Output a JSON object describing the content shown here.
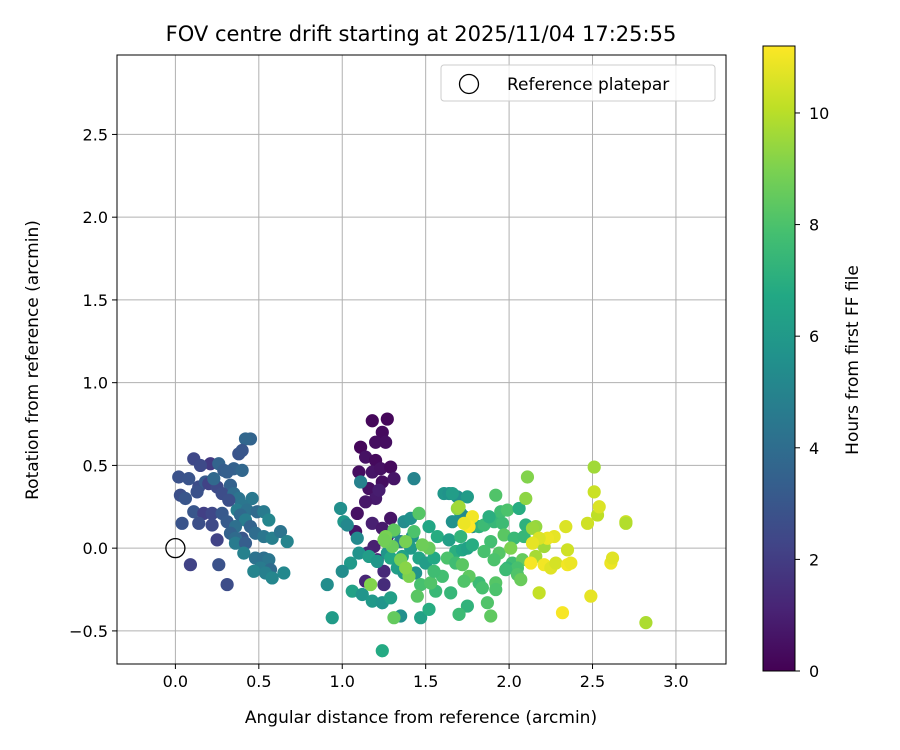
{
  "chart_data": {
    "type": "scatter",
    "title": "FOV centre drift starting at 2025/11/04 17:25:55",
    "xlabel": "Angular distance from reference (arcmin)",
    "ylabel": "Rotation from reference (arcmin)",
    "xlim": [
      -0.35,
      3.3
    ],
    "ylim": [
      -0.7,
      2.98
    ],
    "x_ticks": [
      0.0,
      0.5,
      1.0,
      1.5,
      2.0,
      2.5,
      3.0
    ],
    "y_ticks": [
      -0.5,
      0.0,
      0.5,
      1.0,
      1.5,
      2.0,
      2.5
    ],
    "x_tick_labels": [
      "0.0",
      "0.5",
      "1.0",
      "1.5",
      "2.0",
      "2.5",
      "3.0"
    ],
    "y_tick_labels": [
      "−0.5",
      "0.0",
      "0.5",
      "1.0",
      "1.5",
      "2.0",
      "2.5"
    ],
    "grid": true,
    "legend": {
      "location": "top-right",
      "entries": [
        "Reference platepar"
      ]
    },
    "reference_point": {
      "x": 0.0,
      "y": 0.0,
      "label": "Reference platepar"
    },
    "colorbar": {
      "label": "Hours from first FF file",
      "colormap": "viridis",
      "range": [
        0,
        11.2
      ],
      "ticks": [
        0,
        2,
        4,
        6,
        8,
        10
      ],
      "tick_labels": [
        "0",
        "2",
        "4",
        "6",
        "8",
        "10"
      ]
    },
    "points": [
      [
        1.18,
        0.77,
        0.2
      ],
      [
        1.27,
        0.78,
        0.2
      ],
      [
        1.24,
        0.7,
        0.3
      ],
      [
        1.2,
        0.64,
        0.4
      ],
      [
        1.11,
        0.61,
        0.2
      ],
      [
        1.26,
        0.64,
        0.4
      ],
      [
        1.14,
        0.55,
        0.5
      ],
      [
        1.2,
        0.53,
        0.3
      ],
      [
        1.1,
        0.46,
        0.4
      ],
      [
        1.18,
        0.46,
        0.6
      ],
      [
        1.23,
        0.48,
        0.5
      ],
      [
        1.29,
        0.49,
        0.3
      ],
      [
        1.16,
        0.36,
        0.5
      ],
      [
        1.24,
        0.4,
        0.4
      ],
      [
        1.31,
        0.42,
        0.6
      ],
      [
        1.2,
        0.3,
        0.8
      ],
      [
        1.14,
        0.28,
        0.7
      ],
      [
        1.22,
        0.35,
        0.9
      ],
      [
        1.09,
        0.21,
        0.5
      ],
      [
        1.18,
        0.15,
        1.0
      ],
      [
        1.29,
        0.18,
        0.6
      ],
      [
        1.08,
        0.1,
        0.6
      ],
      [
        1.24,
        0.12,
        0.8
      ],
      [
        1.19,
        0.01,
        1.0
      ],
      [
        1.27,
        0.07,
        1.1
      ],
      [
        1.15,
        -0.03,
        1.1
      ],
      [
        1.21,
        -0.07,
        1.2
      ],
      [
        1.25,
        -0.14,
        1.3
      ],
      [
        1.14,
        -0.2,
        1.2
      ],
      [
        1.25,
        -0.22,
        1.4
      ],
      [
        0.45,
        0.66,
        3.6
      ],
      [
        0.42,
        0.66,
        3.7
      ],
      [
        0.38,
        0.57,
        2.9
      ],
      [
        0.4,
        0.59,
        3.0
      ],
      [
        0.11,
        0.54,
        2.4
      ],
      [
        0.21,
        0.51,
        1.9
      ],
      [
        0.15,
        0.5,
        2.5
      ],
      [
        0.26,
        0.51,
        3.6
      ],
      [
        0.02,
        0.43,
        2.8
      ],
      [
        0.08,
        0.42,
        2.9
      ],
      [
        0.14,
        0.37,
        2.6
      ],
      [
        0.18,
        0.4,
        3.2
      ],
      [
        0.29,
        0.47,
        3.3
      ],
      [
        0.35,
        0.48,
        3.5
      ],
      [
        0.4,
        0.47,
        3.7
      ],
      [
        0.31,
        0.46,
        3.4
      ],
      [
        0.13,
        0.34,
        2.8
      ],
      [
        0.03,
        0.32,
        2.7
      ],
      [
        0.2,
        0.39,
        2.2
      ],
      [
        0.25,
        0.37,
        2.5
      ],
      [
        0.23,
        0.42,
        3.8
      ],
      [
        0.33,
        0.38,
        3.5
      ],
      [
        0.28,
        0.33,
        2.6
      ],
      [
        0.35,
        0.33,
        4.0
      ],
      [
        0.38,
        0.3,
        4.3
      ],
      [
        0.46,
        0.3,
        4.5
      ],
      [
        0.32,
        0.29,
        2.7
      ],
      [
        0.4,
        0.26,
        4.4
      ],
      [
        0.06,
        0.3,
        3.0
      ],
      [
        0.11,
        0.22,
        3.0
      ],
      [
        0.17,
        0.21,
        2.1
      ],
      [
        0.22,
        0.21,
        2.4
      ],
      [
        0.28,
        0.21,
        3.1
      ],
      [
        0.37,
        0.23,
        4.7
      ],
      [
        0.43,
        0.23,
        4.2
      ],
      [
        0.49,
        0.22,
        3.9
      ],
      [
        0.53,
        0.22,
        4.6
      ],
      [
        0.39,
        0.2,
        3.8
      ],
      [
        0.42,
        0.17,
        4.7
      ],
      [
        0.56,
        0.17,
        5.1
      ],
      [
        0.04,
        0.15,
        2.9
      ],
      [
        0.14,
        0.15,
        2.7
      ],
      [
        0.22,
        0.14,
        2.5
      ],
      [
        0.31,
        0.16,
        3.2
      ],
      [
        0.36,
        0.13,
        4.1
      ],
      [
        0.45,
        0.13,
        3.6
      ],
      [
        0.48,
        0.09,
        4.0
      ],
      [
        0.33,
        0.09,
        3.5
      ],
      [
        0.4,
        0.06,
        3.0
      ],
      [
        0.25,
        0.05,
        2.2
      ],
      [
        0.36,
        0.06,
        3.9
      ],
      [
        0.53,
        0.07,
        4.4
      ],
      [
        0.58,
        0.06,
        4.8
      ],
      [
        0.63,
        0.1,
        4.3
      ],
      [
        0.67,
        0.04,
        5.0
      ],
      [
        0.36,
        0.03,
        4.6
      ],
      [
        0.42,
        0.03,
        3.3
      ],
      [
        0.41,
        -0.03,
        4.9
      ],
      [
        0.48,
        -0.06,
        4.2
      ],
      [
        0.53,
        -0.06,
        4.1
      ],
      [
        0.56,
        -0.07,
        4.4
      ],
      [
        0.51,
        -0.12,
        4.6
      ],
      [
        0.57,
        -0.13,
        3.9
      ],
      [
        0.47,
        -0.14,
        5.0
      ],
      [
        0.54,
        -0.15,
        4.8
      ],
      [
        0.58,
        -0.18,
        5.1
      ],
      [
        0.65,
        -0.15,
        5.2
      ],
      [
        0.26,
        -0.1,
        2.8
      ],
      [
        0.09,
        -0.1,
        2.2
      ],
      [
        0.31,
        -0.22,
        2.6
      ],
      [
        1.43,
        0.42,
        5.0
      ],
      [
        1.11,
        0.4,
        4.9
      ],
      [
        0.99,
        0.24,
        5.5
      ],
      [
        1.01,
        0.16,
        5.9
      ],
      [
        1.03,
        0.14,
        5.2
      ],
      [
        1.31,
        0.1,
        5.5
      ],
      [
        1.37,
        0.16,
        5.4
      ],
      [
        1.41,
        0.18,
        5.6
      ],
      [
        1.09,
        0.06,
        5.3
      ],
      [
        1.35,
        0.04,
        4.9
      ],
      [
        1.42,
        0.07,
        5.8
      ],
      [
        1.1,
        -0.03,
        5.7
      ],
      [
        1.16,
        -0.05,
        6.2
      ],
      [
        1.27,
        -0.03,
        5.8
      ],
      [
        1.41,
        0.0,
        6.1
      ],
      [
        1.05,
        -0.09,
        6.0
      ],
      [
        1.0,
        -0.14,
        5.4
      ],
      [
        1.21,
        -0.08,
        5.9
      ],
      [
        1.29,
        -0.06,
        6.6
      ],
      [
        1.36,
        -0.05,
        6.4
      ],
      [
        1.46,
        -0.06,
        6.5
      ],
      [
        1.33,
        -0.12,
        6.3
      ],
      [
        1.37,
        -0.15,
        6.0
      ],
      [
        1.44,
        -0.15,
        5.7
      ],
      [
        1.5,
        -0.09,
        6.2
      ],
      [
        1.55,
        -0.06,
        6.7
      ],
      [
        0.91,
        -0.22,
        5.4
      ],
      [
        1.06,
        -0.26,
        6.4
      ],
      [
        1.12,
        -0.28,
        5.8
      ],
      [
        1.18,
        -0.32,
        6.0
      ],
      [
        1.24,
        -0.33,
        5.8
      ],
      [
        1.29,
        -0.3,
        6.3
      ],
      [
        1.35,
        -0.41,
        5.5
      ],
      [
        1.47,
        -0.42,
        6.4
      ],
      [
        1.52,
        -0.37,
        6.9
      ],
      [
        0.94,
        -0.42,
        6.1
      ],
      [
        1.24,
        -0.62,
        6.8
      ],
      [
        1.52,
        0.13,
        6.6
      ],
      [
        1.57,
        0.07,
        6.9
      ],
      [
        1.64,
        0.05,
        6.3
      ],
      [
        1.68,
        -0.02,
        7.0
      ],
      [
        1.72,
        -0.01,
        6.6
      ],
      [
        1.61,
        0.33,
        5.9
      ],
      [
        1.64,
        0.33,
        5.7
      ],
      [
        1.69,
        0.31,
        5.5
      ],
      [
        1.66,
        0.33,
        6.2
      ],
      [
        1.75,
        0.31,
        6.1
      ],
      [
        1.71,
        0.21,
        5.9
      ],
      [
        1.73,
        0.19,
        5.3
      ],
      [
        1.78,
        0.13,
        5.4
      ],
      [
        1.66,
        0.16,
        5.6
      ],
      [
        1.75,
        0.0,
        6.4
      ],
      [
        1.71,
        0.07,
        7.3
      ],
      [
        1.78,
        0.02,
        6.9
      ],
      [
        1.82,
        0.13,
        7.1
      ],
      [
        1.85,
        0.14,
        7.6
      ],
      [
        1.91,
        0.16,
        7.4
      ],
      [
        1.95,
        0.22,
        7.7
      ],
      [
        1.99,
        0.23,
        8.0
      ],
      [
        1.92,
        0.32,
        8.1
      ],
      [
        1.88,
        0.19,
        7.0
      ],
      [
        1.96,
        0.15,
        7.6
      ],
      [
        2.06,
        0.24,
        6.9
      ],
      [
        2.1,
        0.14,
        7.1
      ],
      [
        1.89,
        0.04,
        7.8
      ],
      [
        1.97,
        0.08,
        8.3
      ],
      [
        2.03,
        0.06,
        7.5
      ],
      [
        2.09,
        0.07,
        7.4
      ],
      [
        1.85,
        -0.02,
        7.9
      ],
      [
        1.94,
        -0.03,
        8.2
      ],
      [
        1.91,
        -0.07,
        8.0
      ],
      [
        2.02,
        -0.09,
        7.7
      ],
      [
        2.08,
        -0.07,
        8.5
      ],
      [
        1.99,
        -0.12,
        7.3
      ],
      [
        2.05,
        -0.12,
        7.9
      ],
      [
        1.98,
        -0.13,
        7.6
      ],
      [
        2.05,
        -0.16,
        8.1
      ],
      [
        1.82,
        -0.21,
        7.6
      ],
      [
        1.84,
        -0.24,
        7.9
      ],
      [
        1.92,
        -0.21,
        8.2
      ],
      [
        1.92,
        -0.25,
        8.0
      ],
      [
        2.07,
        -0.19,
        8.6
      ],
      [
        1.87,
        -0.33,
        8.1
      ],
      [
        1.89,
        -0.41,
        8.4
      ],
      [
        1.75,
        -0.35,
        7.2
      ],
      [
        1.65,
        -0.27,
        7.4
      ],
      [
        1.56,
        -0.26,
        7.5
      ],
      [
        1.7,
        -0.4,
        7.6
      ],
      [
        1.6,
        -0.17,
        7.8
      ],
      [
        1.47,
        -0.22,
        7.9
      ],
      [
        1.53,
        -0.21,
        8.1
      ],
      [
        1.45,
        -0.29,
        8.3
      ],
      [
        1.31,
        -0.42,
        8.5
      ],
      [
        1.55,
        -0.14,
        7.7
      ],
      [
        1.63,
        -0.06,
        8.0
      ],
      [
        1.68,
        -0.09,
        7.7
      ],
      [
        1.76,
        -0.17,
        8.4
      ],
      [
        1.73,
        -0.2,
        8.1
      ],
      [
        1.72,
        -0.1,
        8.3
      ],
      [
        1.52,
        0.0,
        8.6
      ],
      [
        1.46,
        0.21,
        8.2
      ],
      [
        1.31,
        0.11,
        8.4
      ],
      [
        1.43,
        0.1,
        8.0
      ],
      [
        1.48,
        0.02,
        8.7
      ],
      [
        1.38,
        0.04,
        8.9
      ],
      [
        1.3,
        0.01,
        8.6
      ],
      [
        1.26,
        0.04,
        8.7
      ],
      [
        1.26,
        0.07,
        8.9
      ],
      [
        1.25,
        0.05,
        8.8
      ],
      [
        1.35,
        -0.07,
        8.9
      ],
      [
        1.4,
        -0.17,
        9.0
      ],
      [
        1.38,
        -0.12,
        9.2
      ],
      [
        1.17,
        -0.22,
        9.1
      ],
      [
        1.69,
        0.24,
        9.4
      ],
      [
        1.7,
        0.25,
        9.6
      ],
      [
        2.01,
        0.0,
        9.0
      ],
      [
        2.11,
        0.43,
        9.1
      ],
      [
        2.1,
        0.3,
        9.3
      ],
      [
        2.16,
        0.13,
        9.4
      ],
      [
        2.14,
        0.12,
        9.5
      ],
      [
        2.16,
        -0.05,
        9.7
      ],
      [
        2.21,
        0.01,
        9.6
      ],
      [
        2.18,
        -0.27,
        10.2
      ],
      [
        2.34,
        0.13,
        10.6
      ],
      [
        2.27,
        0.07,
        10.8
      ],
      [
        2.23,
        0.06,
        10.9
      ],
      [
        2.18,
        0.06,
        10.6
      ],
      [
        2.14,
        0.03,
        10.8
      ],
      [
        2.21,
        -0.1,
        11.0
      ],
      [
        2.25,
        -0.12,
        10.7
      ],
      [
        2.28,
        -0.09,
        10.5
      ],
      [
        2.13,
        -0.09,
        11.1
      ],
      [
        2.35,
        -0.01,
        10.4
      ],
      [
        2.35,
        -0.1,
        11.0
      ],
      [
        2.37,
        -0.09,
        10.9
      ],
      [
        2.32,
        -0.39,
        11.1
      ],
      [
        2.51,
        0.49,
        9.6
      ],
      [
        2.51,
        0.34,
        10.3
      ],
      [
        2.53,
        0.2,
        10.1
      ],
      [
        2.54,
        0.25,
        10.6
      ],
      [
        2.47,
        0.15,
        10.4
      ],
      [
        2.61,
        -0.09,
        10.9
      ],
      [
        2.62,
        -0.06,
        10.7
      ],
      [
        2.49,
        -0.29,
        10.8
      ],
      [
        2.7,
        0.16,
        10.3
      ],
      [
        2.7,
        0.15,
        9.9
      ],
      [
        2.82,
        -0.45,
        9.8
      ],
      [
        1.78,
        0.19,
        11.0
      ],
      [
        1.76,
        0.13,
        11.2
      ],
      [
        1.73,
        0.15,
        10.9
      ]
    ]
  }
}
